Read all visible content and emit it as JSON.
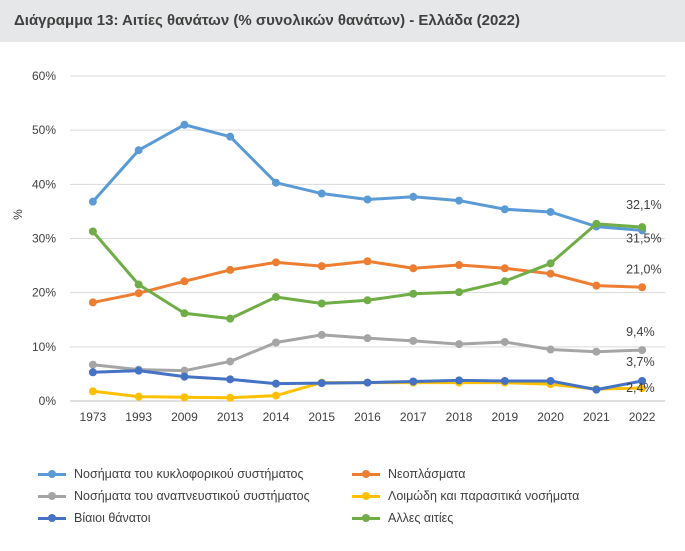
{
  "header": {
    "title": "Διάγραμμα 13: Αιτίες θανάτων (% συνολικών θανάτων) - Ελλάδα (2022)"
  },
  "chart_data": {
    "type": "line",
    "title": "Διάγραμμα 13: Αιτίες θανάτων (% συνολικών θανάτων) - Ελλάδα (2022)",
    "xlabel": "",
    "ylabel": "%",
    "categories": [
      "1973",
      "1993",
      "2009",
      "2013",
      "2014",
      "2015",
      "2016",
      "2017",
      "2018",
      "2019",
      "2020",
      "2021",
      "2022"
    ],
    "ylim": [
      0,
      60
    ],
    "yticks": [
      0,
      10,
      20,
      30,
      40,
      50,
      60
    ],
    "ytick_labels": [
      "0%",
      "10%",
      "20%",
      "30%",
      "40%",
      "50%",
      "60%"
    ],
    "grid": true,
    "legend_position": "bottom",
    "series": [
      {
        "name": "Νοσήματα του κυκλοφορικού συστήματος",
        "color": "#5b9bd5",
        "values": [
          36.8,
          46.3,
          51.0,
          48.8,
          40.3,
          38.3,
          37.2,
          37.7,
          37.0,
          35.4,
          34.9,
          32.2,
          31.5
        ],
        "end_label": "31,5%"
      },
      {
        "name": "Νεοπλάσματα",
        "color": "#ed7d31",
        "values": [
          18.2,
          19.9,
          22.1,
          24.2,
          25.6,
          24.9,
          25.8,
          24.5,
          25.1,
          24.5,
          23.5,
          21.3,
          21.0
        ],
        "end_label": "21,0%"
      },
      {
        "name": "Νοσήματα του αναπνευστικού συστήματος",
        "color": "#a5a5a5",
        "values": [
          6.7,
          5.8,
          5.6,
          7.3,
          10.8,
          12.2,
          11.6,
          11.1,
          10.5,
          10.9,
          9.5,
          9.1,
          9.4
        ],
        "end_label": "9,4%"
      },
      {
        "name": "Λοιμώδη και παρασιτικά νοσήματα",
        "color": "#ffc000",
        "values": [
          1.8,
          0.8,
          0.7,
          0.6,
          1.0,
          3.4,
          3.4,
          3.4,
          3.4,
          3.4,
          3.1,
          2.2,
          2.4
        ],
        "end_label": "2,4%"
      },
      {
        "name": "Βίαιοι θάνατοι",
        "color": "#4472c4",
        "values": [
          5.3,
          5.6,
          4.5,
          4.0,
          3.2,
          3.3,
          3.4,
          3.6,
          3.8,
          3.7,
          3.7,
          2.1,
          3.7
        ],
        "end_label": "3,7%"
      },
      {
        "name": "Αλλες αιτίες",
        "color": "#70ad47",
        "values": [
          31.3,
          21.5,
          16.2,
          15.2,
          19.2,
          18.0,
          18.6,
          19.8,
          20.1,
          22.1,
          25.4,
          32.7,
          32.1
        ],
        "end_label": "32,1%"
      }
    ]
  }
}
